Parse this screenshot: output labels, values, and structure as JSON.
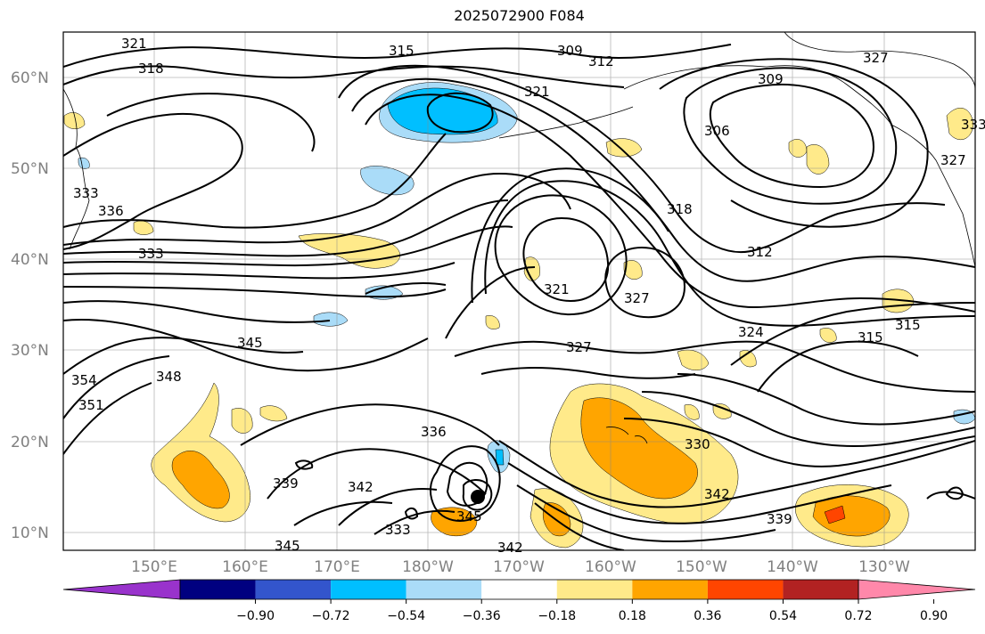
{
  "title": "2025072900 F084",
  "lat_labels": [
    "60°N",
    "50°N",
    "40°N",
    "30°N",
    "20°N",
    "10°N"
  ],
  "lon_labels": [
    "150°E",
    "160°E",
    "170°E",
    "180°W",
    "170°W",
    "160°W",
    "150°W",
    "140°W",
    "130°W"
  ],
  "contour_labels": [
    "321",
    "318",
    "315",
    "309",
    "312",
    "321",
    "309",
    "306",
    "327",
    "333",
    "333",
    "336",
    "333",
    "327",
    "318",
    "312",
    "321",
    "327",
    "324",
    "315",
    "315",
    "345",
    "348",
    "351",
    "354",
    "336",
    "327",
    "330",
    "339",
    "342",
    "345",
    "333",
    "342",
    "339",
    "345",
    "342"
  ],
  "colorbar": {
    "colors": [
      "#9933cc",
      "#000080",
      "#3355cc",
      "#00bfff",
      "#aadcf8",
      "#ffffff",
      "#ffea8a",
      "#ffa500",
      "#ff4500",
      "#b22222",
      "#ff88aa"
    ],
    "tick_labels": [
      "−0.90",
      "−0.72",
      "−0.54",
      "−0.36",
      "−0.18",
      "0.18",
      "0.36",
      "0.54",
      "0.72",
      "0.90"
    ]
  }
}
